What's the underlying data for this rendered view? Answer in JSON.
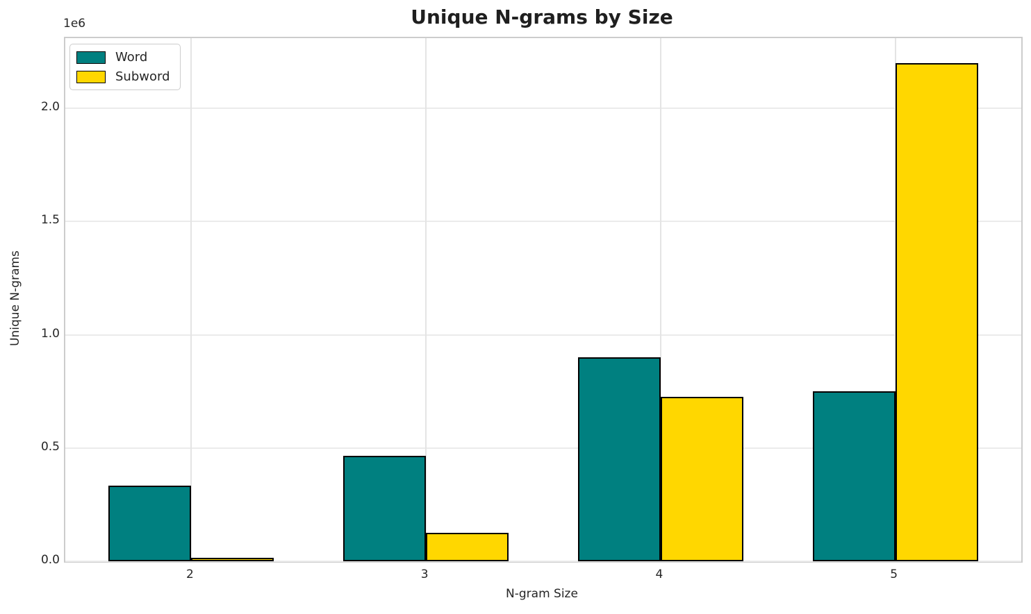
{
  "chart_data": {
    "type": "bar",
    "title": "Unique N-grams by Size",
    "xlabel": "N-gram Size",
    "ylabel": "Unique N-grams",
    "y_offset_text": "1e6",
    "categories": [
      "2",
      "3",
      "4",
      "5"
    ],
    "x_values": [
      2,
      3,
      4,
      5
    ],
    "series": [
      {
        "name": "Word",
        "color": "#008080",
        "values": [
          335000,
          465000,
          900000,
          750000
        ]
      },
      {
        "name": "Subword",
        "color": "#FFD700",
        "values": [
          15000,
          125000,
          727000,
          2200000
        ]
      }
    ],
    "bar_width_data_units": 0.352,
    "bar_edge_color": "#000000",
    "xlim": [
      1.463,
      5.537
    ],
    "ylim": [
      0,
      2310000
    ],
    "yticks": [
      0,
      500000,
      1000000,
      1500000,
      2000000
    ],
    "ytick_labels": [
      "0.0",
      "0.5",
      "1.0",
      "1.5",
      "2.0"
    ],
    "grid": true,
    "grid_color_h": "#ebebeb",
    "grid_color_v": "#e4e4e4",
    "legend_position": "upper left"
  }
}
